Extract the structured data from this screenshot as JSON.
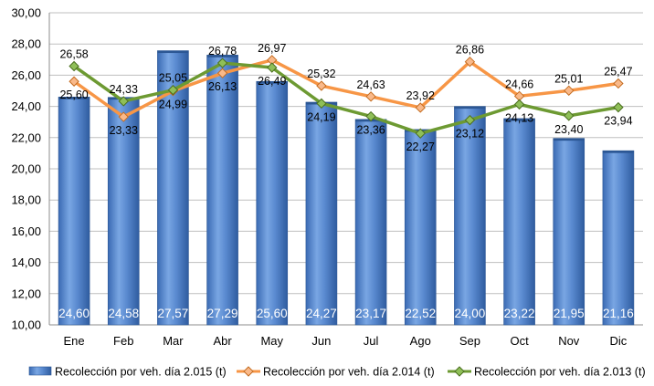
{
  "chart_data": {
    "type": "bar+line",
    "title": "",
    "xlabel": "",
    "ylabel": "",
    "ylim": [
      10,
      30
    ],
    "y_step": 2,
    "y_tick_labels": [
      "10,00",
      "12,00",
      "14,00",
      "16,00",
      "18,00",
      "20,00",
      "22,00",
      "24,00",
      "26,00",
      "28,00",
      "30,00"
    ],
    "categories": [
      "Ene",
      "Feb",
      "Mar",
      "Abr",
      "May",
      "Jun",
      "Jul",
      "Ago",
      "Sep",
      "Oct",
      "Nov",
      "Dic"
    ],
    "grid": "horizontal",
    "legend_position": "bottom",
    "series": [
      {
        "name": "Recolección por veh. día 2.015 (t)",
        "kind": "bar",
        "color": "#4a7cc4",
        "values": [
          24.6,
          24.58,
          27.57,
          27.29,
          25.6,
          24.27,
          23.17,
          22.52,
          24.0,
          23.22,
          21.95,
          21.16
        ],
        "labels": [
          "24,60",
          "24,58",
          "27,57",
          "27,29",
          "25,60",
          "24,27",
          "23,17",
          "22,52",
          "24,00",
          "23,22",
          "21,95",
          "21,16"
        ]
      },
      {
        "name": "Recolección por veh. día 2.014 (t)",
        "kind": "line",
        "color": "#f79646",
        "values": [
          25.6,
          23.33,
          24.99,
          26.13,
          26.97,
          25.32,
          24.63,
          23.92,
          26.86,
          24.66,
          25.01,
          25.47
        ],
        "labels": [
          "25,60",
          "23,33",
          "24,99",
          "26,13",
          "26,97",
          "25,32",
          "24,63",
          "23,92",
          "26,86",
          "24,66",
          "25,01",
          "25,47"
        ]
      },
      {
        "name": "Recolección por veh. día 2.013 (t)",
        "kind": "line",
        "color": "#6d9a32",
        "values": [
          26.58,
          24.33,
          25.05,
          26.78,
          26.49,
          24.19,
          23.36,
          22.27,
          23.12,
          24.13,
          23.4,
          23.94
        ],
        "labels": [
          "26,58",
          "24,33",
          "25,05",
          "26,78",
          "26,49",
          "24,19",
          "23,36",
          "22,27",
          "23,12",
          "24,13",
          "23,40",
          "23,94"
        ]
      }
    ]
  }
}
